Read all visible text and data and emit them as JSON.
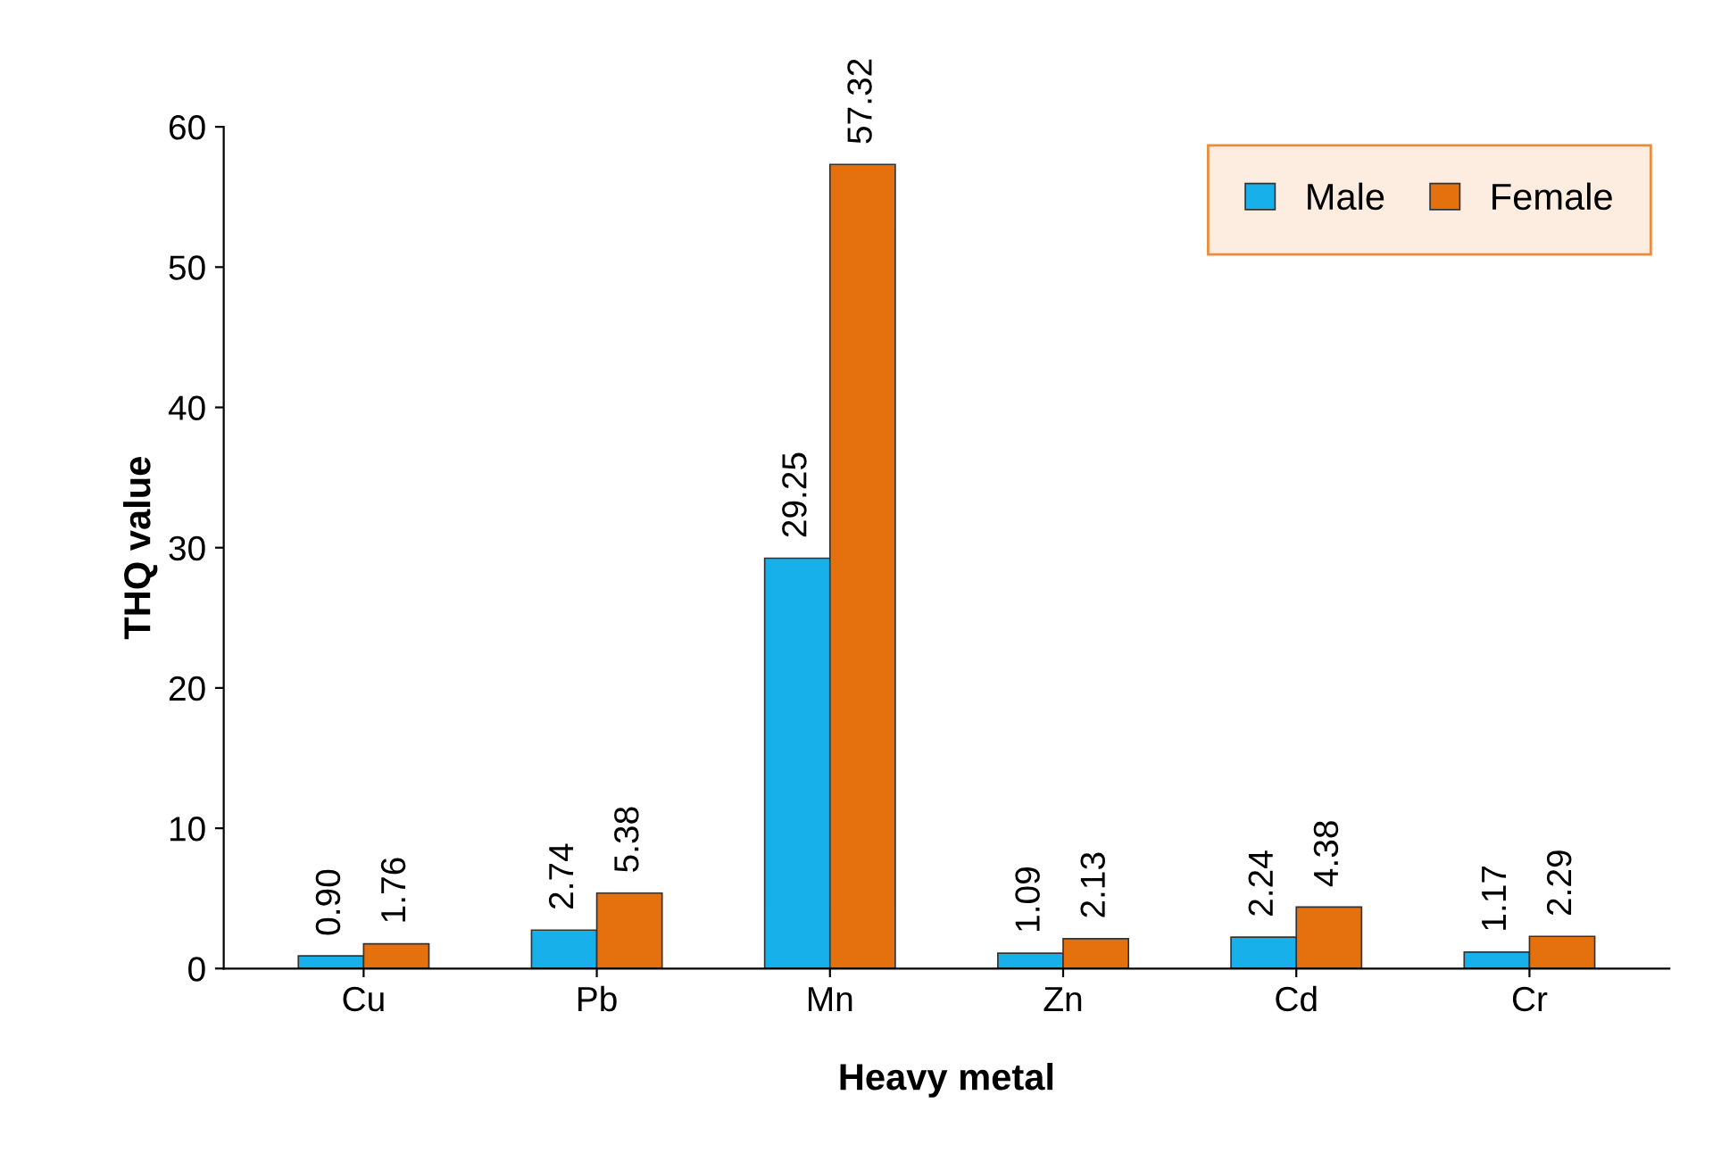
{
  "chart_data": {
    "type": "bar",
    "xlabel": "Heavy metal",
    "ylabel": "THQ value",
    "categories": [
      "Cu",
      "Pb",
      "Mn",
      "Zn",
      "Cd",
      "Cr"
    ],
    "series": [
      {
        "name": "Male",
        "color": "#17b0ea",
        "values": [
          0.9,
          2.74,
          29.25,
          1.09,
          2.24,
          1.17
        ],
        "value_labels": [
          "0.90",
          "2.74",
          "29.25",
          "1.09",
          "2.24",
          "1.17"
        ]
      },
      {
        "name": "Female",
        "color": "#e4700e",
        "values": [
          1.76,
          5.38,
          57.32,
          2.13,
          4.38,
          2.29
        ],
        "value_labels": [
          "1.76",
          "5.38",
          "57.32",
          "2.13",
          "4.38",
          "2.29"
        ]
      }
    ],
    "ylim": [
      0,
      60
    ],
    "yticks": [
      0,
      10,
      20,
      30,
      40,
      50,
      60
    ],
    "grid": false,
    "legend": "top right"
  }
}
